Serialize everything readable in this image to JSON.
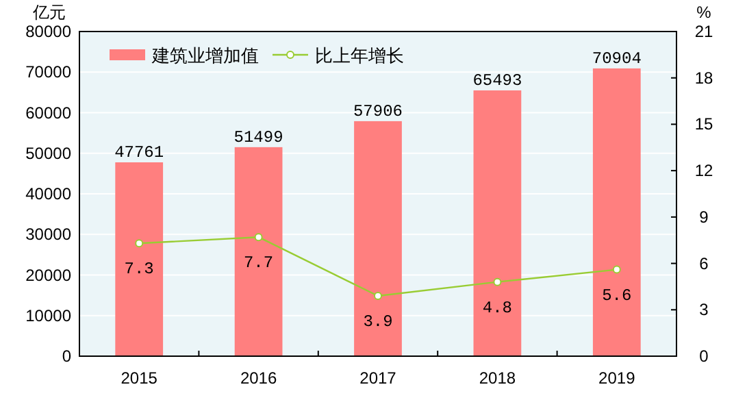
{
  "chart_data": {
    "type": "bar",
    "categories": [
      "2015",
      "2016",
      "2017",
      "2018",
      "2019"
    ],
    "ylabel": "亿元",
    "y2label": "%",
    "series": [
      {
        "name": "建筑业增加值",
        "color": "#ff7f7f",
        "values": [
          47761,
          51499,
          57906,
          65493,
          70904
        ],
        "data_labels": true
      },
      {
        "name": "比上年增长",
        "type": "line",
        "axis": "y2",
        "color": "#99cc33",
        "marker": "circle",
        "values": [
          7.3,
          7.7,
          3.9,
          4.8,
          5.6
        ],
        "data_labels": true
      }
    ],
    "ylim": [
      0,
      80000
    ],
    "yticks": [
      0,
      10000,
      20000,
      30000,
      40000,
      50000,
      60000,
      70000,
      80000
    ],
    "y2lim": [
      0,
      21
    ],
    "y2ticks": [
      0,
      3,
      6,
      9,
      12,
      15,
      18,
      21
    ],
    "grid": "y",
    "legend": "top left"
  }
}
